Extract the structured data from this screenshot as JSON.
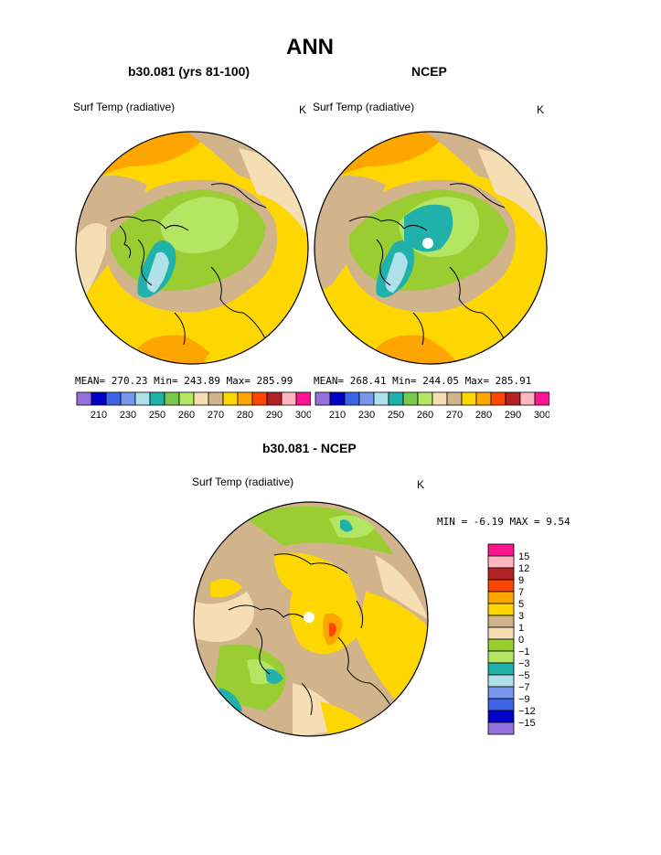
{
  "title": "ANN",
  "panels": [
    {
      "name": "model",
      "heading": "b30.081 (yrs 81-100)",
      "variable": "Surf Temp (radiative)",
      "units": "K",
      "stats": "MEAN= 270.23  Min= 243.89  Max= 285.99"
    },
    {
      "name": "obs",
      "heading": "NCEP",
      "variable": "Surf Temp (radiative)",
      "units": "K",
      "stats": "MEAN= 268.41  Min= 244.05  Max= 285.91"
    }
  ],
  "abs_colorbar": {
    "colors": [
      "#9370db",
      "#0000c8",
      "#3c64e6",
      "#7896eb",
      "#afe1eb",
      "#20b2aa",
      "#78c850",
      "#b4e664",
      "#f5deb3",
      "#d2b48c",
      "#ffd700",
      "#ffa500",
      "#ff4500",
      "#b22222",
      "#ffb6c1",
      "#ff1493"
    ],
    "labels": [
      "210",
      "230",
      "250",
      "260",
      "270",
      "280",
      "290",
      "300"
    ]
  },
  "diff_panel": {
    "heading": "b30.081 - NCEP",
    "variable": "Surf Temp (radiative)",
    "units": "K",
    "minmax": "MIN =   -6.19 MAX =    9.54"
  },
  "diff_colorbar": {
    "colors_top_to_bottom": [
      "#ff1493",
      "#ffb6c1",
      "#b22222",
      "#ff4500",
      "#ffa500",
      "#ffd700",
      "#d2b48c",
      "#f5deb3",
      "#9acd32",
      "#b4e664",
      "#20b2aa",
      "#afe1eb",
      "#7896eb",
      "#3c64e6",
      "#0000c8",
      "#9370db"
    ],
    "labels_top_to_bottom": [
      "15",
      "12",
      "9",
      "7",
      "5",
      "3",
      "1",
      "0",
      "−1",
      "−3",
      "−5",
      "−7",
      "−9",
      "−12",
      "−15"
    ]
  },
  "legend_colors": {
    "ocean_warm": "#ffd700",
    "land_cold": "#9acd32",
    "pole_marker": "#ffffff"
  }
}
